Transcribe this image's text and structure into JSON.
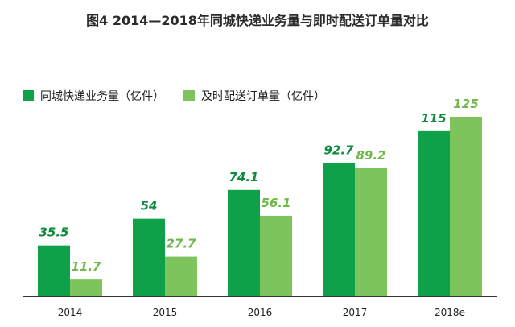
{
  "chart_data": {
    "type": "bar",
    "title": "图4  2014—2018年同城快递业务量与即时配送订单量对比",
    "categories": [
      "2014",
      "2015",
      "2016",
      "2017",
      "2018e"
    ],
    "series": [
      {
        "name": "同城快递业务量（亿件）",
        "values": [
          35.5,
          54,
          74.1,
          92.7,
          115
        ],
        "labels": [
          "35.5",
          "54",
          "74.1",
          "92.7",
          "115"
        ]
      },
      {
        "name": "及时配送订单量（亿件）",
        "values": [
          11.7,
          27.7,
          56.1,
          89.2,
          125
        ],
        "labels": [
          "11.7",
          "27.7",
          "56.1",
          "89.2",
          "125"
        ]
      }
    ],
    "ylim": [
      0,
      125
    ],
    "grid": false,
    "legend": "top-left",
    "colors": [
      "#0fa04a",
      "#7ec45c"
    ]
  }
}
